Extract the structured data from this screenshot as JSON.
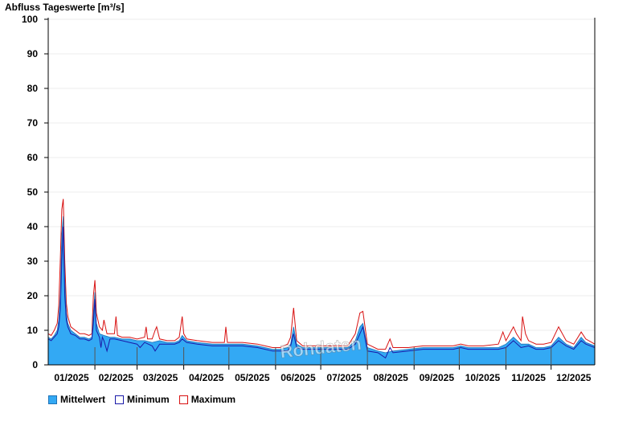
{
  "chart_data": {
    "type": "area",
    "title": "Abfluss Tageswerte [m³/s]",
    "ylim": [
      0,
      100
    ],
    "y_ticks": [
      0,
      10,
      20,
      30,
      40,
      50,
      60,
      70,
      80,
      90,
      100
    ],
    "x_tick_labels": [
      "01/2025",
      "02/2025",
      "03/2025",
      "04/2025",
      "05/2025",
      "06/2025",
      "07/2025",
      "08/2025",
      "09/2025",
      "10/2025",
      "11/2025",
      "12/2025"
    ],
    "grid": true,
    "legend_position": "bottom-left",
    "watermark": "Rohdaten",
    "colors": {
      "mean_fill": "#33a9f4",
      "mean_line": "#1e73b8",
      "minimum": "#1a1aa8",
      "maximum": "#d81111"
    },
    "series": [
      {
        "name": "Mittelwert",
        "anchors": [
          [
            1,
            8
          ],
          [
            3,
            7.5
          ],
          [
            5,
            8.5
          ],
          [
            7,
            10
          ],
          [
            8,
            13
          ],
          [
            9,
            20
          ],
          [
            10,
            38
          ],
          [
            11,
            43
          ],
          [
            12,
            25
          ],
          [
            13,
            15
          ],
          [
            14,
            12
          ],
          [
            16,
            10
          ],
          [
            19,
            9
          ],
          [
            22,
            8
          ],
          [
            25,
            8
          ],
          [
            28,
            7.5
          ],
          [
            30,
            8
          ],
          [
            31,
            15
          ],
          [
            32,
            21
          ],
          [
            33,
            12
          ],
          [
            35,
            9
          ],
          [
            38,
            8.5
          ],
          [
            42,
            8
          ],
          [
            45,
            8
          ],
          [
            50,
            7.5
          ],
          [
            55,
            7.5
          ],
          [
            60,
            7
          ],
          [
            65,
            7
          ],
          [
            70,
            6.5
          ],
          [
            75,
            7
          ],
          [
            80,
            6.5
          ],
          [
            85,
            6.5
          ],
          [
            88,
            7
          ],
          [
            90,
            8.5
          ],
          [
            93,
            7
          ],
          [
            100,
            6.5
          ],
          [
            110,
            6
          ],
          [
            120,
            6
          ],
          [
            130,
            6
          ],
          [
            140,
            5.5
          ],
          [
            145,
            5
          ],
          [
            150,
            4.5
          ],
          [
            155,
            4.5
          ],
          [
            160,
            5
          ],
          [
            162,
            6
          ],
          [
            164,
            11
          ],
          [
            166,
            6
          ],
          [
            170,
            5
          ],
          [
            180,
            5
          ],
          [
            190,
            5
          ],
          [
            200,
            5
          ],
          [
            205,
            7
          ],
          [
            208,
            11
          ],
          [
            210,
            12
          ],
          [
            213,
            5
          ],
          [
            220,
            4
          ],
          [
            225,
            3.5
          ],
          [
            230,
            4
          ],
          [
            240,
            4.5
          ],
          [
            250,
            5
          ],
          [
            260,
            5
          ],
          [
            270,
            5
          ],
          [
            275,
            5.5
          ],
          [
            280,
            5
          ],
          [
            290,
            5
          ],
          [
            300,
            5
          ],
          [
            305,
            6
          ],
          [
            310,
            8
          ],
          [
            315,
            6
          ],
          [
            320,
            6
          ],
          [
            325,
            5
          ],
          [
            330,
            5
          ],
          [
            335,
            5.5
          ],
          [
            340,
            8
          ],
          [
            345,
            6
          ],
          [
            350,
            5
          ],
          [
            355,
            8
          ],
          [
            358,
            6.5
          ],
          [
            364,
            5.5
          ]
        ]
      },
      {
        "name": "Minimum",
        "anchors": [
          [
            1,
            7.5
          ],
          [
            3,
            7
          ],
          [
            5,
            8
          ],
          [
            7,
            9
          ],
          [
            8,
            11
          ],
          [
            9,
            16
          ],
          [
            10,
            30
          ],
          [
            11,
            40
          ],
          [
            12,
            20
          ],
          [
            13,
            13
          ],
          [
            14,
            11
          ],
          [
            16,
            9
          ],
          [
            19,
            8.5
          ],
          [
            22,
            7.5
          ],
          [
            25,
            7.5
          ],
          [
            28,
            7
          ],
          [
            30,
            7.5
          ],
          [
            31,
            12
          ],
          [
            32,
            19
          ],
          [
            33,
            10
          ],
          [
            35,
            8
          ],
          [
            36,
            5
          ],
          [
            37,
            8
          ],
          [
            38,
            7
          ],
          [
            40,
            4
          ],
          [
            42,
            7.5
          ],
          [
            45,
            7.5
          ],
          [
            50,
            7
          ],
          [
            55,
            6.5
          ],
          [
            60,
            6
          ],
          [
            62,
            5
          ],
          [
            65,
            6.5
          ],
          [
            70,
            5.5
          ],
          [
            72,
            4
          ],
          [
            75,
            6
          ],
          [
            80,
            6
          ],
          [
            85,
            6
          ],
          [
            88,
            6.5
          ],
          [
            90,
            7.5
          ],
          [
            93,
            6.5
          ],
          [
            100,
            6
          ],
          [
            110,
            5.5
          ],
          [
            120,
            5.5
          ],
          [
            130,
            5.5
          ],
          [
            140,
            5
          ],
          [
            145,
            4.5
          ],
          [
            150,
            4
          ],
          [
            155,
            4
          ],
          [
            160,
            4
          ],
          [
            162,
            5.5
          ],
          [
            164,
            9
          ],
          [
            166,
            5
          ],
          [
            170,
            4.5
          ],
          [
            180,
            4.5
          ],
          [
            190,
            4.5
          ],
          [
            200,
            4.5
          ],
          [
            205,
            6
          ],
          [
            208,
            9
          ],
          [
            210,
            11
          ],
          [
            213,
            4
          ],
          [
            220,
            3.5
          ],
          [
            225,
            2
          ],
          [
            228,
            5
          ],
          [
            230,
            3.5
          ],
          [
            240,
            4
          ],
          [
            250,
            4.5
          ],
          [
            260,
            4.5
          ],
          [
            270,
            4.5
          ],
          [
            275,
            5
          ],
          [
            280,
            4.5
          ],
          [
            290,
            4.5
          ],
          [
            300,
            4.5
          ],
          [
            305,
            5
          ],
          [
            310,
            7
          ],
          [
            315,
            5
          ],
          [
            320,
            5.5
          ],
          [
            325,
            4.5
          ],
          [
            330,
            4.5
          ],
          [
            335,
            5
          ],
          [
            340,
            7
          ],
          [
            345,
            5.5
          ],
          [
            350,
            4.5
          ],
          [
            355,
            7
          ],
          [
            358,
            6
          ],
          [
            364,
            5
          ]
        ]
      },
      {
        "name": "Maximum",
        "anchors": [
          [
            1,
            9
          ],
          [
            3,
            8.5
          ],
          [
            5,
            10
          ],
          [
            7,
            12
          ],
          [
            8,
            17
          ],
          [
            9,
            30
          ],
          [
            10,
            45
          ],
          [
            11,
            48
          ],
          [
            12,
            30
          ],
          [
            13,
            18
          ],
          [
            14,
            14
          ],
          [
            16,
            11
          ],
          [
            19,
            10
          ],
          [
            22,
            9
          ],
          [
            25,
            9
          ],
          [
            28,
            8.5
          ],
          [
            30,
            9
          ],
          [
            31,
            20
          ],
          [
            32,
            24.5
          ],
          [
            33,
            15
          ],
          [
            35,
            11
          ],
          [
            37,
            10
          ],
          [
            38,
            13
          ],
          [
            40,
            9
          ],
          [
            45,
            9
          ],
          [
            46,
            14
          ],
          [
            47,
            8.5
          ],
          [
            50,
            8
          ],
          [
            55,
            8
          ],
          [
            60,
            7.5
          ],
          [
            65,
            8
          ],
          [
            66,
            11
          ],
          [
            67,
            7.5
          ],
          [
            70,
            7.5
          ],
          [
            72,
            10
          ],
          [
            73,
            11
          ],
          [
            75,
            7.5
          ],
          [
            80,
            7
          ],
          [
            85,
            7
          ],
          [
            88,
            8
          ],
          [
            90,
            14
          ],
          [
            91,
            9
          ],
          [
            93,
            7.5
          ],
          [
            100,
            7
          ],
          [
            110,
            6.5
          ],
          [
            118,
            6.5
          ],
          [
            119,
            11
          ],
          [
            120,
            6.5
          ],
          [
            130,
            6.5
          ],
          [
            140,
            6
          ],
          [
            145,
            5.5
          ],
          [
            150,
            5
          ],
          [
            155,
            5
          ],
          [
            160,
            6
          ],
          [
            162,
            8
          ],
          [
            164,
            16.5
          ],
          [
            166,
            7
          ],
          [
            170,
            5.5
          ],
          [
            180,
            5.5
          ],
          [
            190,
            5.5
          ],
          [
            200,
            5.5
          ],
          [
            205,
            9
          ],
          [
            208,
            15
          ],
          [
            210,
            15.5
          ],
          [
            213,
            6
          ],
          [
            220,
            4.5
          ],
          [
            225,
            4.5
          ],
          [
            228,
            7.5
          ],
          [
            230,
            5
          ],
          [
            240,
            5
          ],
          [
            250,
            5.5
          ],
          [
            260,
            5.5
          ],
          [
            270,
            5.5
          ],
          [
            275,
            6
          ],
          [
            280,
            5.5
          ],
          [
            290,
            5.5
          ],
          [
            300,
            6
          ],
          [
            303,
            9.5
          ],
          [
            305,
            7
          ],
          [
            310,
            11
          ],
          [
            312,
            9
          ],
          [
            315,
            7
          ],
          [
            316,
            14
          ],
          [
            318,
            9
          ],
          [
            320,
            7
          ],
          [
            325,
            6
          ],
          [
            330,
            6
          ],
          [
            335,
            6.5
          ],
          [
            340,
            11
          ],
          [
            345,
            7
          ],
          [
            350,
            6
          ],
          [
            355,
            9.5
          ],
          [
            358,
            7.5
          ],
          [
            364,
            6
          ]
        ]
      }
    ]
  }
}
